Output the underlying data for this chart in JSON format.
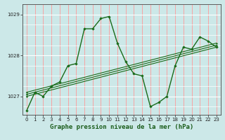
{
  "background_color": "#cce8e8",
  "plot_bg_color": "#cce8e8",
  "grid_h_color": "#ffffff",
  "grid_v_color": "#ff9999",
  "line_color": "#1a6b1a",
  "xlabel": "Graphe pression niveau de la mer (hPa)",
  "xlabel_fontsize": 6.5,
  "tick_fontsize": 5.0,
  "ylabel_ticks": [
    1027,
    1028,
    1029
  ],
  "xlim": [
    -0.5,
    23.5
  ],
  "ylim": [
    1026.55,
    1029.25
  ],
  "series": [
    {
      "x": [
        0,
        1,
        2,
        3,
        4,
        5,
        6,
        7,
        8,
        9,
        10,
        11,
        12,
        13,
        14,
        15,
        16,
        17,
        18,
        19,
        20,
        21,
        22,
        23
      ],
      "y": [
        1026.65,
        1027.1,
        1027.0,
        1027.25,
        1027.35,
        1027.75,
        1027.8,
        1028.65,
        1028.65,
        1028.9,
        1028.95,
        1028.3,
        1027.85,
        1027.55,
        1027.5,
        1026.75,
        1026.85,
        1027.0,
        1027.75,
        1028.2,
        1028.15,
        1028.45,
        1028.35,
        1028.2
      ]
    },
    {
      "x": [
        0,
        23
      ],
      "y": [
        1027.0,
        1028.2
      ]
    },
    {
      "x": [
        0,
        23
      ],
      "y": [
        1027.05,
        1028.25
      ]
    },
    {
      "x": [
        0,
        23
      ],
      "y": [
        1027.1,
        1028.3
      ]
    }
  ]
}
